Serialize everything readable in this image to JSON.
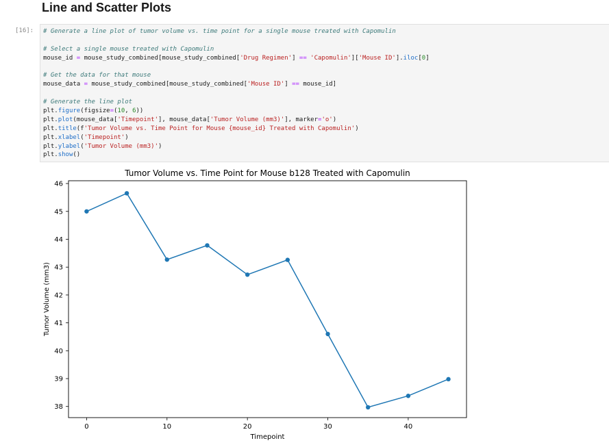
{
  "section_heading": "Line and Scatter Plots",
  "cell": {
    "prompt": "[16]:",
    "code_lines": [
      "# Generate a line plot of tumor volume vs. time point for a single mouse treated with Capomulin",
      "",
      "# Select a single mouse treated with Capomulin",
      "mouse_id = mouse_study_combined[mouse_study_combined['Drug Regimen'] == 'Capomulin']['Mouse ID'].iloc[0]",
      "",
      "# Get the data for that mouse",
      "mouse_data = mouse_study_combined[mouse_study_combined['Mouse ID'] == mouse_id]",
      "",
      "# Generate the line plot",
      "plt.figure(figsize=(10, 6))",
      "plt.plot(mouse_data['Timepoint'], mouse_data['Tumor Volume (mm3)'], marker='o')",
      "plt.title(f'Tumor Volume vs. Time Point for Mouse {mouse_id} Treated with Capomulin')",
      "plt.xlabel('Timepoint')",
      "plt.ylabel('Tumor Volume (mm3)')",
      "plt.show()"
    ]
  },
  "colors": {
    "line": "#1f77b4",
    "comment": "#3d7a7a",
    "string": "#ba2121",
    "keyword": "#1e6ec8",
    "operator": "#aa22ff",
    "number": "#2a8a2a"
  },
  "chart_data": {
    "type": "line",
    "title": "Tumor Volume vs. Time Point for Mouse b128 Treated with Capomulin",
    "xlabel": "Timepoint",
    "ylabel": "Tumor Volume (mm3)",
    "x": [
      0,
      5,
      10,
      15,
      20,
      25,
      30,
      35,
      40,
      45
    ],
    "y": [
      45.0,
      45.65,
      43.27,
      43.78,
      42.73,
      43.26,
      40.6,
      37.97,
      38.38,
      38.98
    ],
    "xlim": [
      -2.25,
      47.25
    ],
    "ylim": [
      37.6,
      46.1
    ],
    "xticks": [
      0,
      10,
      20,
      30,
      40
    ],
    "yticks": [
      38,
      39,
      40,
      41,
      42,
      43,
      44,
      45,
      46
    ],
    "marker": "o",
    "grid": false
  }
}
